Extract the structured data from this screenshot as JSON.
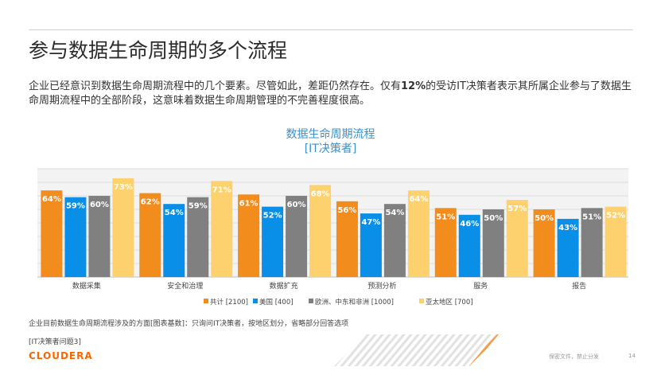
{
  "slide": {
    "title": "参与数据生命周期的多个流程",
    "intro_before": "企业已经意识到数据生命周期流程中的几个要素。尽管如此，差距仍然存在。仅有",
    "intro_bold": "12%",
    "intro_after": "的受访IT决策者表示其所属企业参与了数据生命周期流程中的全部阶段，这意味着数据生命周期管理的不完善程度很高。",
    "base_note": "企业目前数据生命周期流程涉及的方面[图表基数]：只询问IT决策者，按地区划分，省略部分回答选项",
    "question_ref": "[IT决策者问题3]",
    "logo_text": "CLOUDERA",
    "confidential": "保密文件，禁止分发",
    "page_number": "14"
  },
  "chart_data": {
    "type": "bar",
    "title": "数据生命周期流程",
    "subtitle": "[IT决策者]",
    "categories": [
      "数据采集",
      "安全和治理",
      "数据扩充",
      "预测分析",
      "服务",
      "报告"
    ],
    "series": [
      {
        "name": "共计 [2100]",
        "color": "#f28c1c",
        "values": [
          64,
          62,
          61,
          56,
          51,
          50
        ]
      },
      {
        "name": "美国 [400]",
        "color": "#0a8fe8",
        "values": [
          59,
          54,
          52,
          47,
          46,
          43
        ]
      },
      {
        "name": "欧洲、中东和非洲 [1000]",
        "color": "#808080",
        "values": [
          60,
          59,
          60,
          54,
          50,
          51
        ]
      },
      {
        "name": "亚太地区 [700]",
        "color": "#fdd16e",
        "values": [
          73,
          71,
          68,
          64,
          57,
          52
        ]
      }
    ],
    "value_suffix": "%",
    "ylim": [
      0,
      80
    ],
    "grid": true,
    "legend_position": "bottom"
  }
}
